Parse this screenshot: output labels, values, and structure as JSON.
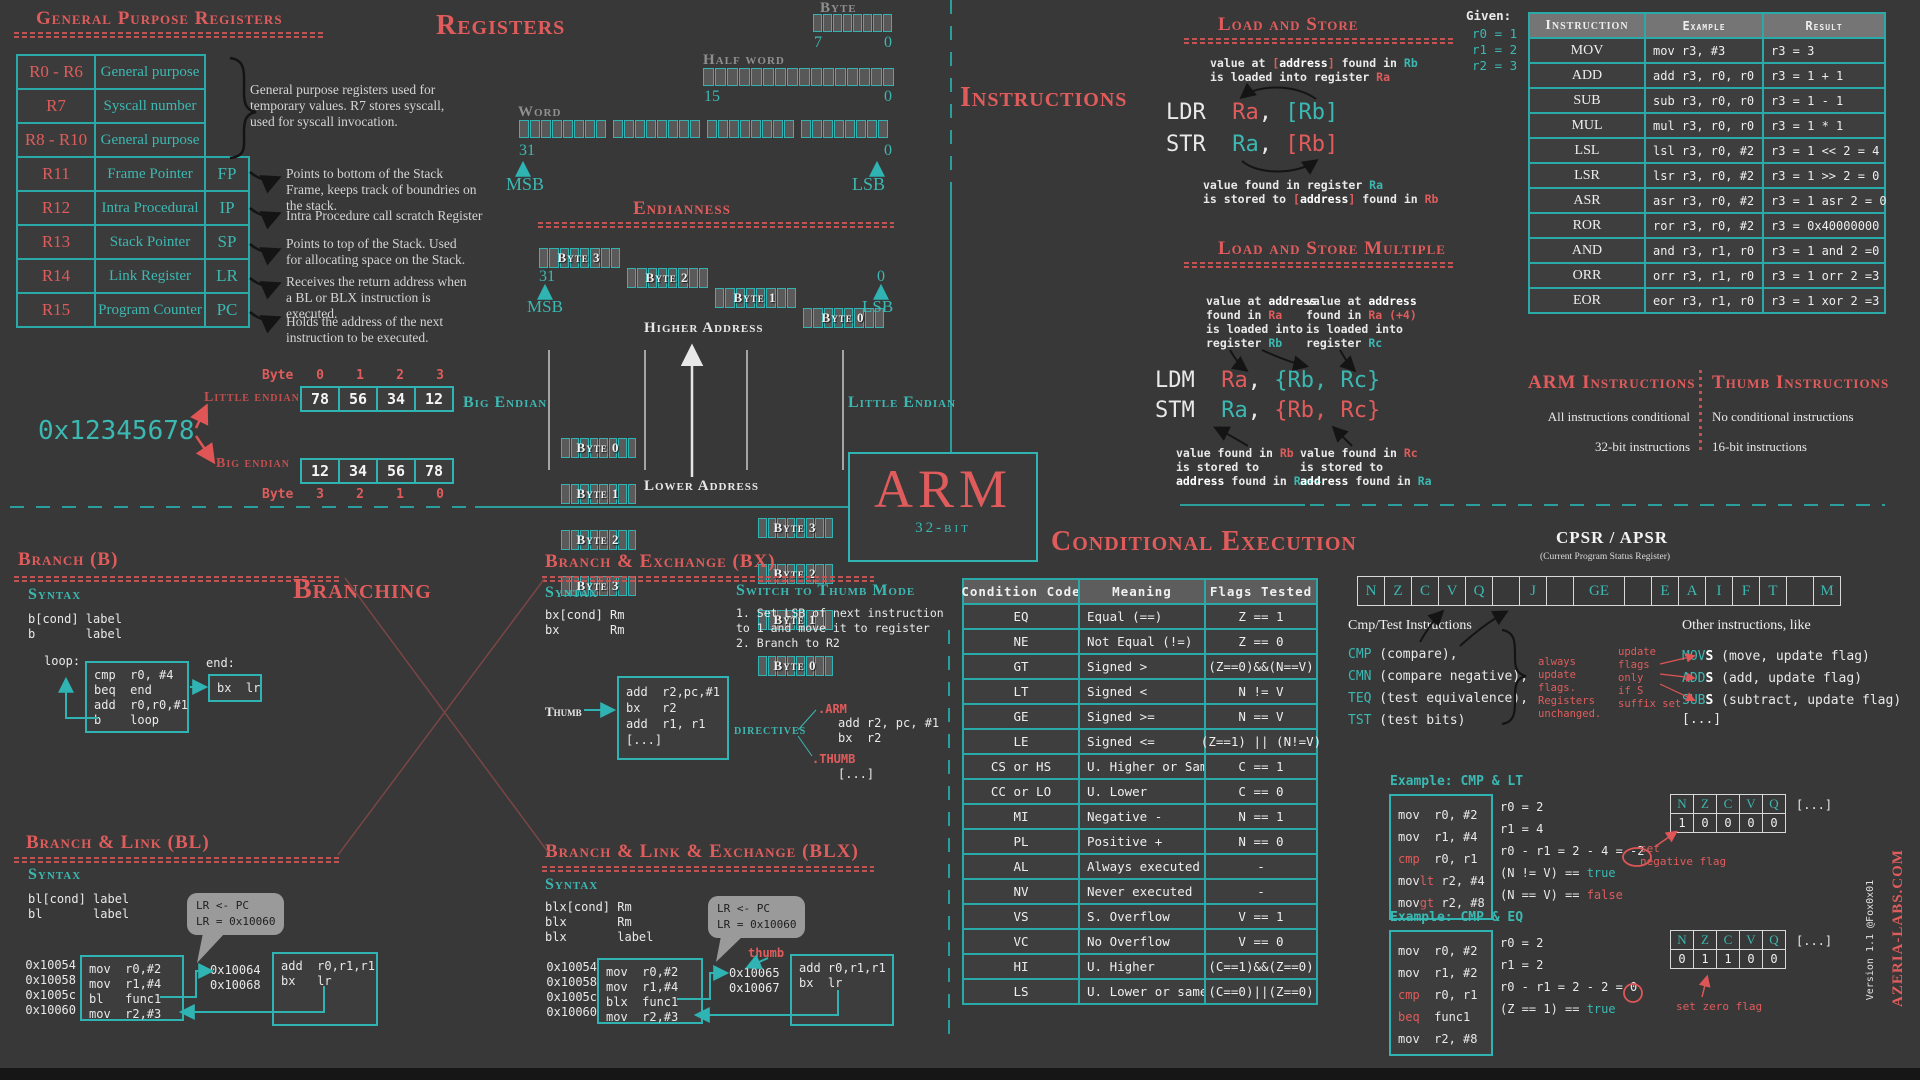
{
  "gpr": {
    "title": "General Purpose Registers",
    "rows": [
      {
        "reg": "R0 - R6",
        "desc": "General purpose",
        "alias": ""
      },
      {
        "reg": "R7",
        "desc": "Syscall number",
        "alias": ""
      },
      {
        "reg": "R8 - R10",
        "desc": "General purpose",
        "alias": ""
      },
      {
        "reg": "R11",
        "desc": "Frame Pointer",
        "alias": "FP"
      },
      {
        "reg": "R12",
        "desc": "Intra Procedural",
        "alias": "IP"
      },
      {
        "reg": "R13",
        "desc": "Stack Pointer",
        "alias": "SP"
      },
      {
        "reg": "R14",
        "desc": "Link Register",
        "alias": "LR"
      },
      {
        "reg": "R15",
        "desc": "Program Counter",
        "alias": "PC"
      }
    ],
    "notes": {
      "general": "General purpose registers used for temporary values. R7 stores syscall, used for syscall invocation.",
      "fp": "Points to bottom of the Stack Frame, keeps track of boundries on the stack.",
      "ip": "Intra Procedure call scratch Register",
      "sp": "Points to top of the Stack. Used for allocating space on the Stack.",
      "lr": "Receives the return address when a BL or BLX instruction is executed.",
      "pc": "Holds the address of the next instruction to be executed."
    }
  },
  "registers": {
    "title": "Registers",
    "byte": {
      "label": "Byte",
      "hi": "7",
      "lo": "0"
    },
    "half": {
      "label": "Half word",
      "hi": "15",
      "lo": "0"
    },
    "word": {
      "label": "Word",
      "hi": "31",
      "lo": "0",
      "msb": "MSB",
      "lsb": "LSB"
    }
  },
  "endianness": {
    "title": "Endianness",
    "row": [
      "Byte 3",
      "Byte 2",
      "Byte 1",
      "Byte 0"
    ],
    "hi": "31",
    "lo": "0",
    "msb": "MSB",
    "lsb": "LSB",
    "higher": "Higher Address",
    "lower": "Lower Address",
    "big": {
      "label": "Big Endian",
      "bytes": [
        "Byte 0",
        "Byte 1",
        "Byte 2",
        "Byte 3"
      ]
    },
    "little": {
      "label": "Little Endian",
      "bytes": [
        "Byte 3",
        "Byte 2",
        "Byte 1",
        "Byte 0"
      ]
    }
  },
  "endian_example": {
    "value": "0x12345678",
    "byte_label": "Byte",
    "little": {
      "label": "Little endian",
      "indices": [
        "0",
        "1",
        "2",
        "3"
      ],
      "bytes": [
        "78",
        "56",
        "34",
        "12"
      ]
    },
    "big": {
      "label": "Big endian",
      "indices": [
        "3",
        "2",
        "1",
        "0"
      ],
      "bytes": [
        "12",
        "34",
        "56",
        "78"
      ]
    }
  },
  "instructions_title": "Instructions",
  "load_store": {
    "title": "Load and Store",
    "note_top": [
      [
        [
          "value at ",
          "w"
        ],
        [
          "[",
          "r"
        ],
        [
          "address",
          "b"
        ],
        [
          "]",
          "r"
        ],
        [
          " found in ",
          "w"
        ],
        [
          "Rb",
          "t"
        ]
      ],
      [
        [
          "is loaded into register ",
          "w"
        ],
        [
          "Ra",
          "r"
        ]
      ]
    ],
    "ldr": [
      [
        "LDR",
        "w"
      ],
      [
        "  Ra",
        "r"
      ],
      [
        ", ",
        "w"
      ],
      [
        "[Rb]",
        "t"
      ]
    ],
    "str": [
      [
        "STR",
        "w"
      ],
      [
        "  Ra",
        "t"
      ],
      [
        ", ",
        "w"
      ],
      [
        "[Rb]",
        "r"
      ]
    ],
    "note_bottom": [
      [
        [
          "value found in register ",
          "w"
        ],
        [
          "Ra",
          "t"
        ]
      ],
      [
        [
          "is stored to ",
          "w"
        ],
        [
          "[",
          "r"
        ],
        [
          "address",
          "b"
        ],
        [
          "]",
          "r"
        ],
        [
          " found in ",
          "w"
        ],
        [
          "Rb",
          "r"
        ]
      ]
    ],
    "given": {
      "label": "Given:",
      "values": [
        "r0 = 1",
        "r1 = 2",
        "r2 = 3"
      ]
    }
  },
  "instruction_table": {
    "headers": [
      "Instruction",
      "Example",
      "Result"
    ],
    "rows": [
      [
        "MOV",
        "mov r3, #3",
        "r3 = 3"
      ],
      [
        "ADD",
        "add r3, r0, r0",
        "r3 = 1 + 1"
      ],
      [
        "SUB",
        "sub r3, r0, r0",
        "r3 = 1 - 1"
      ],
      [
        "MUL",
        "mul r3, r0, r0",
        "r3 = 1 * 1"
      ],
      [
        "LSL",
        "lsl r3, r0, #2",
        "r3 = 1 << 2 = 4"
      ],
      [
        "LSR",
        "lsr r3, r0, #2",
        "r3 = 1 >> 2 = 0"
      ],
      [
        "ASR",
        "asr r3, r0, #2",
        "r3 = 1 asr 2 = 0"
      ],
      [
        "ROR",
        "ror r3, r0, #2",
        "r3 = 0x40000000"
      ],
      [
        "AND",
        "and r3, r1, r0",
        "r3 = 1 and 2 =0"
      ],
      [
        "ORR",
        "orr r3, r1, r0",
        "r3 = 1 orr 2 =3"
      ],
      [
        "EOR",
        "eor r3, r1, r0",
        "r3 = 1 xor 2 =3"
      ]
    ]
  },
  "ldm_stm": {
    "title": "Load and Store Multiple",
    "note_tl": [
      [
        [
          "value at ",
          "w"
        ],
        [
          "address",
          "b"
        ]
      ],
      [
        [
          "found in ",
          "w"
        ],
        [
          "Ra",
          "r"
        ]
      ],
      [
        [
          "is loaded into",
          "w"
        ]
      ],
      [
        [
          "register ",
          "w"
        ],
        [
          "Rb",
          "t"
        ]
      ]
    ],
    "note_tr": [
      [
        [
          "value at ",
          "w"
        ],
        [
          "address",
          "b"
        ]
      ],
      [
        [
          "found in ",
          "w"
        ],
        [
          "Ra (+4)",
          "r"
        ]
      ],
      [
        [
          "is loaded into",
          "w"
        ]
      ],
      [
        [
          "register ",
          "w"
        ],
        [
          "Rc",
          "t"
        ]
      ]
    ],
    "ldm": [
      [
        "LDM",
        "w"
      ],
      [
        "  Ra",
        "r"
      ],
      [
        ", ",
        "w"
      ],
      [
        "{Rb, Rc}",
        "t"
      ]
    ],
    "stm": [
      [
        "STM",
        "w"
      ],
      [
        "  Ra",
        "t"
      ],
      [
        ", ",
        "w"
      ],
      [
        "{Rb, Rc}",
        "r"
      ]
    ],
    "note_bl": [
      [
        [
          "value found in ",
          "w"
        ],
        [
          "Rb",
          "r"
        ]
      ],
      [
        [
          "is stored to",
          "w"
        ]
      ],
      [
        [
          "address",
          "b"
        ],
        [
          " found in ",
          "w"
        ],
        [
          "Ra+4",
          "t"
        ]
      ]
    ],
    "note_br": [
      [
        [
          "value found in ",
          "w"
        ],
        [
          "Rc",
          "r"
        ]
      ],
      [
        [
          "is stored to",
          "w"
        ]
      ],
      [
        [
          "address",
          "b"
        ],
        [
          " found in ",
          "w"
        ],
        [
          "Ra",
          "t"
        ]
      ]
    ]
  },
  "arm_thumb": {
    "arm": {
      "title": "ARM Instructions",
      "lines": [
        "All instructions conditional",
        "32-bit instructions"
      ]
    },
    "thumb": {
      "title": "Thumb Instructions",
      "lines": [
        "No conditional instructions",
        "16-bit instructions"
      ]
    }
  },
  "logo": {
    "name": "ARM",
    "sub": "32-bit"
  },
  "branching_title": "Branching",
  "branch_b": {
    "title": "Branch (B)",
    "syntax_label": "Syntax",
    "syntax": [
      "b[cond] label",
      "b       label"
    ],
    "loop_label": "loop:",
    "loop_code": [
      "cmp  r0, #4",
      "beq  end",
      "add  r0,r0,#1",
      "b    loop"
    ],
    "end_label": "end:",
    "end_code": [
      "bx  lr"
    ]
  },
  "branch_bx": {
    "title": "Branch & Exchange (BX)",
    "syntax_label": "Syntax",
    "syntax": [
      "bx[cond] Rm",
      "bx       Rm"
    ],
    "switch_title": "Switch to Thumb Mode",
    "steps": [
      "1. Set LSB of next instruction",
      "to 1 and move it to register",
      "2. Branch to R2"
    ],
    "thumb_label": "Thumb",
    "code": [
      "add  r2,pc,#1",
      "bx   r2",
      "add  r1, r1",
      "[...]"
    ],
    "directives_label": "directives",
    "arm_directive": ".ARM",
    "arm_code": [
      "add r2, pc, #1",
      "bx  r2"
    ],
    "thumb_directive": ".THUMB",
    "thumb_code": [
      "[...]"
    ]
  },
  "branch_bl": {
    "title": "Branch & Link  (BL)",
    "syntax_label": "Syntax",
    "syntax": [
      "bl[cond] label",
      "bl       label"
    ],
    "bubble": [
      "LR <- PC",
      "LR = 0x10060"
    ],
    "addrs": [
      "0x10054",
      "0x10058",
      "0x1005c",
      "0x10060"
    ],
    "code": [
      "mov  r0,#2",
      "mov  r1,#4",
      "bl   func1",
      "mov  r2,#3"
    ],
    "ret_addrs": [
      "0x10064",
      "0x10068"
    ],
    "ret_code": [
      "add  r0,r1,r1",
      "bx   lr"
    ]
  },
  "branch_blx": {
    "title": "Branch & Link & Exchange (BLX)",
    "syntax_label": "Syntax",
    "syntax": [
      "blx[cond] Rm",
      "blx       Rm",
      "blx       label"
    ],
    "bubble": [
      "LR <- PC",
      "LR = 0x10060"
    ],
    "thumb_label": "thumb",
    "addrs": [
      "0x10054",
      "0x10058",
      "0x1005c",
      "0x10060"
    ],
    "code": [
      "mov  r0,#2",
      "mov  r1,#4",
      "blx  func1",
      "mov  r2,#3"
    ],
    "ret_addrs": [
      "0x10065",
      "0x10067"
    ],
    "ret_code": [
      "add r0,r1,r1",
      "bx  lr"
    ]
  },
  "conditional": {
    "title": "Conditional Execution",
    "headers": [
      "Condition Code",
      "Meaning",
      "Flags Tested"
    ],
    "rows": [
      [
        "EQ",
        "Equal (==)",
        "Z == 1"
      ],
      [
        "NE",
        "Not Equal (!=)",
        "Z == 0"
      ],
      [
        "GT",
        "Signed >",
        "(Z==0)&&(N==V)"
      ],
      [
        "LT",
        "Signed <",
        "N != V"
      ],
      [
        "GE",
        "Signed >=",
        "N == V"
      ],
      [
        "LE",
        "Signed <=",
        "(Z==1) || (N!=V)"
      ],
      [
        "CS or HS",
        "U. Higher or Same",
        "C == 1"
      ],
      [
        "CC or LO",
        "U. Lower",
        "C == 0"
      ],
      [
        "MI",
        "Negative -",
        "N == 1"
      ],
      [
        "PL",
        "Positive +",
        "N == 0"
      ],
      [
        "AL",
        "Always executed",
        "-"
      ],
      [
        "NV",
        "Never executed",
        "-"
      ],
      [
        "VS",
        "S. Overflow",
        "V == 1"
      ],
      [
        "VC",
        "No Overflow",
        "V == 0"
      ],
      [
        "HI",
        "U. Higher",
        "(C==1)&&(Z==0)"
      ],
      [
        "LS",
        "U. Lower or same",
        "(C==0)||(Z==0)"
      ]
    ]
  },
  "cpsr": {
    "title": "CPSR / APSR",
    "subtitle": "(Current Program Status Register)",
    "cells": [
      "N",
      "Z",
      "C",
      "V",
      "Q",
      "",
      "J",
      "",
      "GE",
      "",
      "E",
      "A",
      "I",
      "F",
      "T",
      "",
      "M"
    ]
  },
  "cmp_test": {
    "title": "Cmp/Test Instructions",
    "items": [
      [
        "CMP",
        " (compare),"
      ],
      [
        "CMN",
        " (compare negative),"
      ],
      [
        "TEQ",
        " (test equivalence),"
      ],
      [
        "TST",
        " (test bits)"
      ]
    ],
    "always_note": [
      "always",
      "update",
      "flags.",
      "Registers",
      "unchanged."
    ],
    "s_note": [
      "update",
      "flags",
      "only",
      "if S",
      "suffix set"
    ],
    "other_title": "Other instructions, like",
    "others": [
      [
        "MOV",
        "S",
        " (move, update flag)"
      ],
      [
        "ADD",
        "S",
        " (add, update flag)"
      ],
      [
        "SUB",
        "S",
        " (subtract, update flag)"
      ]
    ],
    "more": "[...]"
  },
  "example_lt": {
    "title": "Example: CMP & LT",
    "code": [
      [
        [
          "mov  r0, #2",
          "w"
        ]
      ],
      [
        [
          "mov  r1, #4",
          "w"
        ]
      ],
      [
        [
          "cmp",
          "r"
        ],
        [
          "  r0, r1",
          "w"
        ]
      ],
      [
        [
          "mov",
          "w"
        ],
        [
          "lt",
          "r"
        ],
        [
          " r2, #4",
          "w"
        ]
      ],
      [
        [
          "mov",
          "w"
        ],
        [
          "gt",
          "r"
        ],
        [
          " r2, #8",
          "w"
        ]
      ]
    ],
    "notes": [
      [
        [
          "r0 = 2",
          "w"
        ]
      ],
      [
        [
          "r1 = 4",
          "w"
        ]
      ],
      [
        [
          "r0 - r1 = 2 - 4 = -2",
          "w"
        ]
      ],
      [
        [
          "(N != V) == ",
          "w"
        ],
        [
          "true",
          "t"
        ]
      ],
      [
        [
          "(N == V) == ",
          "w"
        ],
        [
          "false",
          "r"
        ]
      ]
    ],
    "flags": {
      "headers": [
        "N",
        "Z",
        "C",
        "V",
        "Q"
      ],
      "values": [
        "1",
        "0",
        "0",
        "0",
        "0"
      ]
    },
    "more": "[...]",
    "flag_note": [
      "set",
      "negative flag"
    ]
  },
  "example_eq": {
    "title": "Example: CMP & EQ",
    "code": [
      [
        [
          "mov  r0, #2",
          "w"
        ]
      ],
      [
        [
          "mov  r1, #2",
          "w"
        ]
      ],
      [
        [
          "cmp",
          "r"
        ],
        [
          "  r0, r1",
          "w"
        ]
      ],
      [
        [
          "beq",
          "r"
        ],
        [
          "  func1",
          "w"
        ]
      ],
      [
        [
          "mov  r2, #8",
          "w"
        ]
      ]
    ],
    "notes": [
      [
        [
          "r0 = 2",
          "w"
        ]
      ],
      [
        [
          "r1 = 2",
          "w"
        ]
      ],
      [
        [
          "r0 - r1 = 2 - 2 = 0",
          "w"
        ]
      ],
      [
        [
          "(Z == 1) == ",
          "w"
        ],
        [
          "true",
          "t"
        ]
      ]
    ],
    "flags": {
      "headers": [
        "N",
        "Z",
        "C",
        "V",
        "Q"
      ],
      "values": [
        "0",
        "1",
        "1",
        "0",
        "0"
      ]
    },
    "more": "[...]",
    "flag_note": [
      "set zero flag"
    ]
  },
  "footer": {
    "version": "Version 1.1 @Fox0x01",
    "site": "AZERIA-LABS.COM"
  }
}
